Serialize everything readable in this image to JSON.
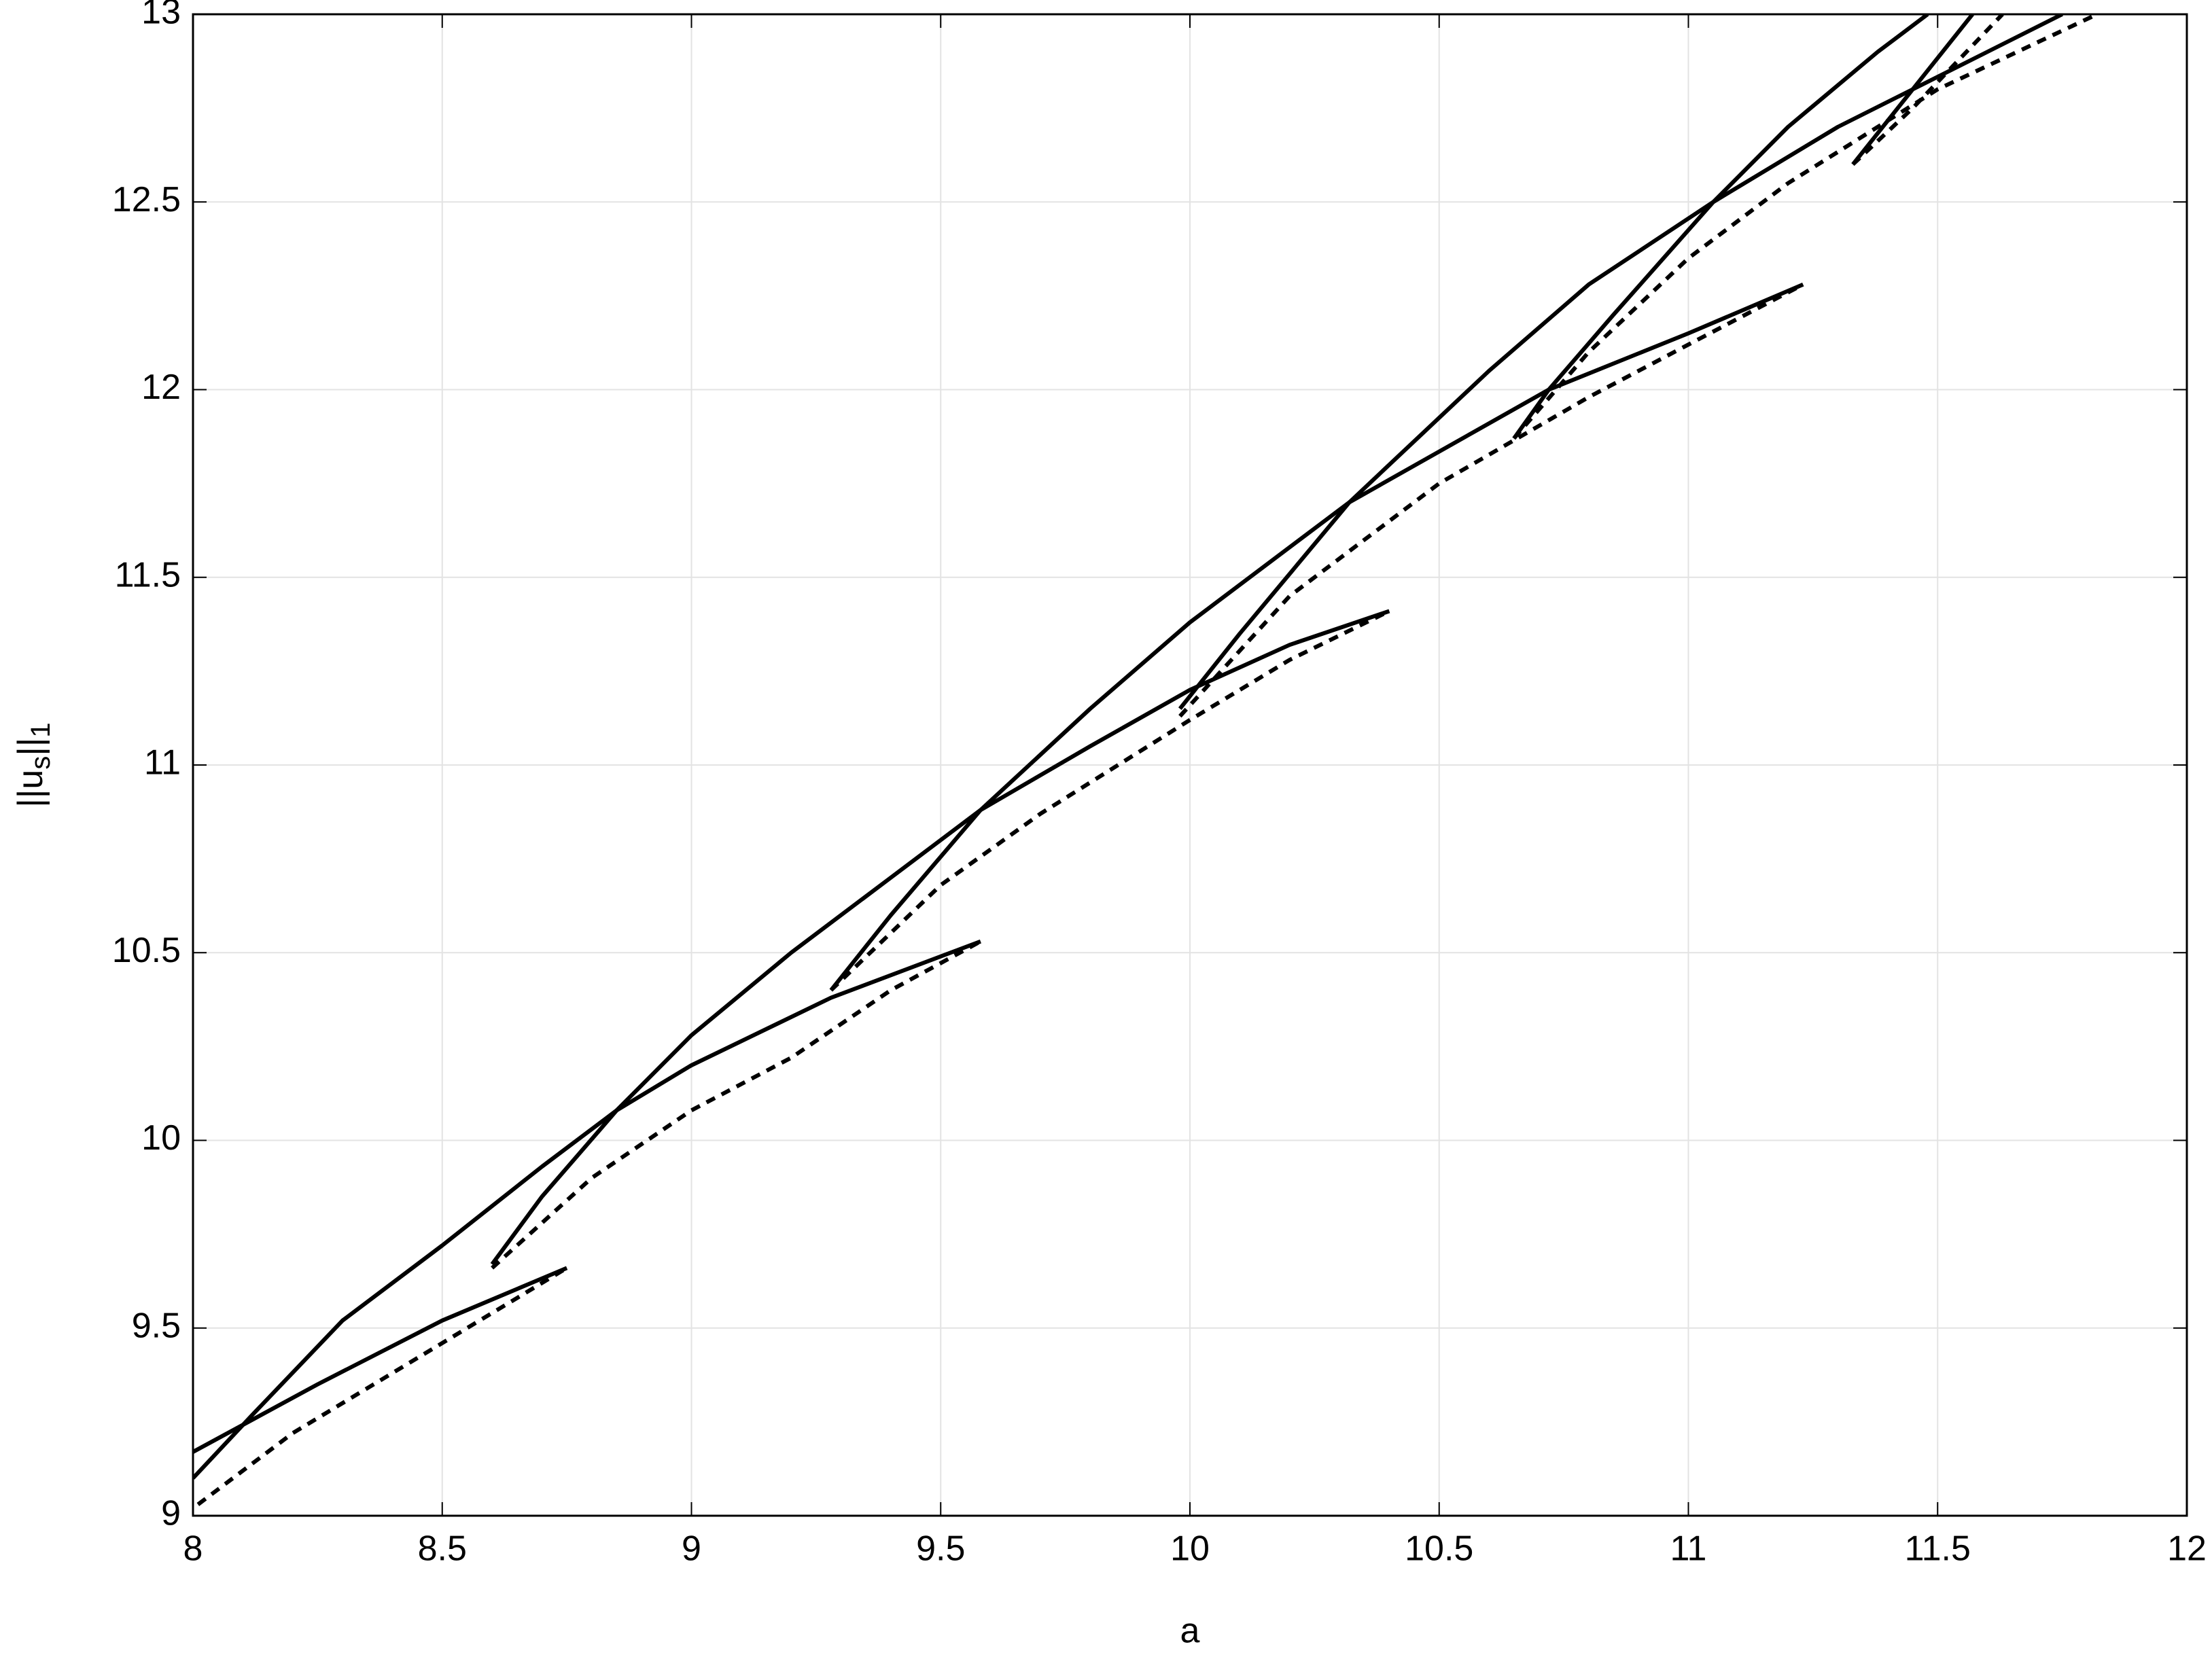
{
  "chart_data": {
    "type": "line",
    "xlabel": "a",
    "ylabel": [
      "||u",
      "s",
      "||",
      "1"
    ],
    "xlim": [
      8,
      12
    ],
    "ylim": [
      9,
      13
    ],
    "xticks": [
      8,
      8.5,
      9,
      9.5,
      10,
      10.5,
      11,
      11.5,
      12
    ],
    "yticks": [
      9,
      9.5,
      10,
      10.5,
      11,
      11.5,
      12,
      12.5,
      13
    ],
    "grid": true,
    "series": [
      {
        "color": "#000000",
        "dash": false,
        "x": [
          8,
          8.25,
          8.5,
          8.75
        ],
        "values": [
          9.17,
          9.35,
          9.52,
          9.66
        ]
      },
      {
        "color": "#000000",
        "dash": false,
        "x": [
          8,
          8.12,
          8.3,
          8.5,
          8.7,
          8.85,
          9.0,
          9.28,
          9.58
        ],
        "values": [
          9.1,
          9.27,
          9.52,
          9.72,
          9.93,
          10.08,
          10.2,
          10.38,
          10.53
        ]
      },
      {
        "color": "#000000",
        "dash": false,
        "x": [
          8.6,
          8.7,
          8.85,
          9.0,
          9.2,
          9.4,
          9.58,
          9.8,
          10.0,
          10.2,
          10.4
        ],
        "values": [
          9.67,
          9.85,
          10.08,
          10.28,
          10.5,
          10.7,
          10.88,
          11.05,
          11.2,
          11.32,
          11.41
        ]
      },
      {
        "color": "#000000",
        "dash": false,
        "x": [
          9.28,
          9.4,
          9.58,
          9.8,
          10.0,
          10.32,
          10.72,
          11.0,
          11.23
        ],
        "values": [
          10.4,
          10.6,
          10.88,
          11.15,
          11.38,
          11.7,
          12.0,
          12.15,
          12.28
        ]
      },
      {
        "color": "#000000",
        "dash": false,
        "x": [
          9.98,
          10.1,
          10.32,
          10.6,
          10.8,
          11.05,
          11.3,
          11.45,
          11.6,
          11.75
        ],
        "values": [
          11.15,
          11.35,
          11.7,
          12.05,
          12.28,
          12.5,
          12.7,
          12.8,
          12.9,
          13
        ]
      },
      {
        "color": "#000000",
        "dash": false,
        "x": [
          10.65,
          10.72,
          10.85,
          11.05,
          11.2,
          11.38,
          11.48
        ],
        "values": [
          11.87,
          12.0,
          12.2,
          12.5,
          12.7,
          12.9,
          13
        ]
      },
      {
        "color": "#000000",
        "dash": false,
        "x": [
          11.33,
          11.45,
          11.57
        ],
        "values": [
          12.6,
          12.8,
          13
        ]
      },
      {
        "color": "#000000",
        "dash": true,
        "x": [
          8.01,
          8.2,
          8.4,
          8.6,
          8.75
        ],
        "values": [
          9.03,
          9.22,
          9.38,
          9.54,
          9.66
        ]
      },
      {
        "color": "#000000",
        "dash": true,
        "x": [
          8.6,
          8.8,
          9.0,
          9.2,
          9.4,
          9.58
        ],
        "values": [
          9.66,
          9.9,
          10.08,
          10.22,
          10.4,
          10.53
        ]
      },
      {
        "color": "#000000",
        "dash": true,
        "x": [
          9.28,
          9.5,
          9.7,
          10.0,
          10.2,
          10.4
        ],
        "values": [
          10.4,
          10.68,
          10.87,
          11.12,
          11.28,
          11.41
        ]
      },
      {
        "color": "#000000",
        "dash": true,
        "x": [
          9.98,
          10.2,
          10.5,
          10.8,
          11.0,
          11.23
        ],
        "values": [
          11.13,
          11.45,
          11.75,
          11.98,
          12.12,
          12.28
        ]
      },
      {
        "color": "#000000",
        "dash": true,
        "x": [
          10.65,
          10.8,
          11.0,
          11.2,
          11.5,
          11.82
        ],
        "values": [
          11.87,
          12.1,
          12.35,
          12.55,
          12.8,
          13
        ]
      },
      {
        "color": "#000000",
        "dash": true,
        "x": [
          11.33,
          11.45,
          11.63
        ],
        "values": [
          12.6,
          12.75,
          13
        ]
      }
    ]
  }
}
